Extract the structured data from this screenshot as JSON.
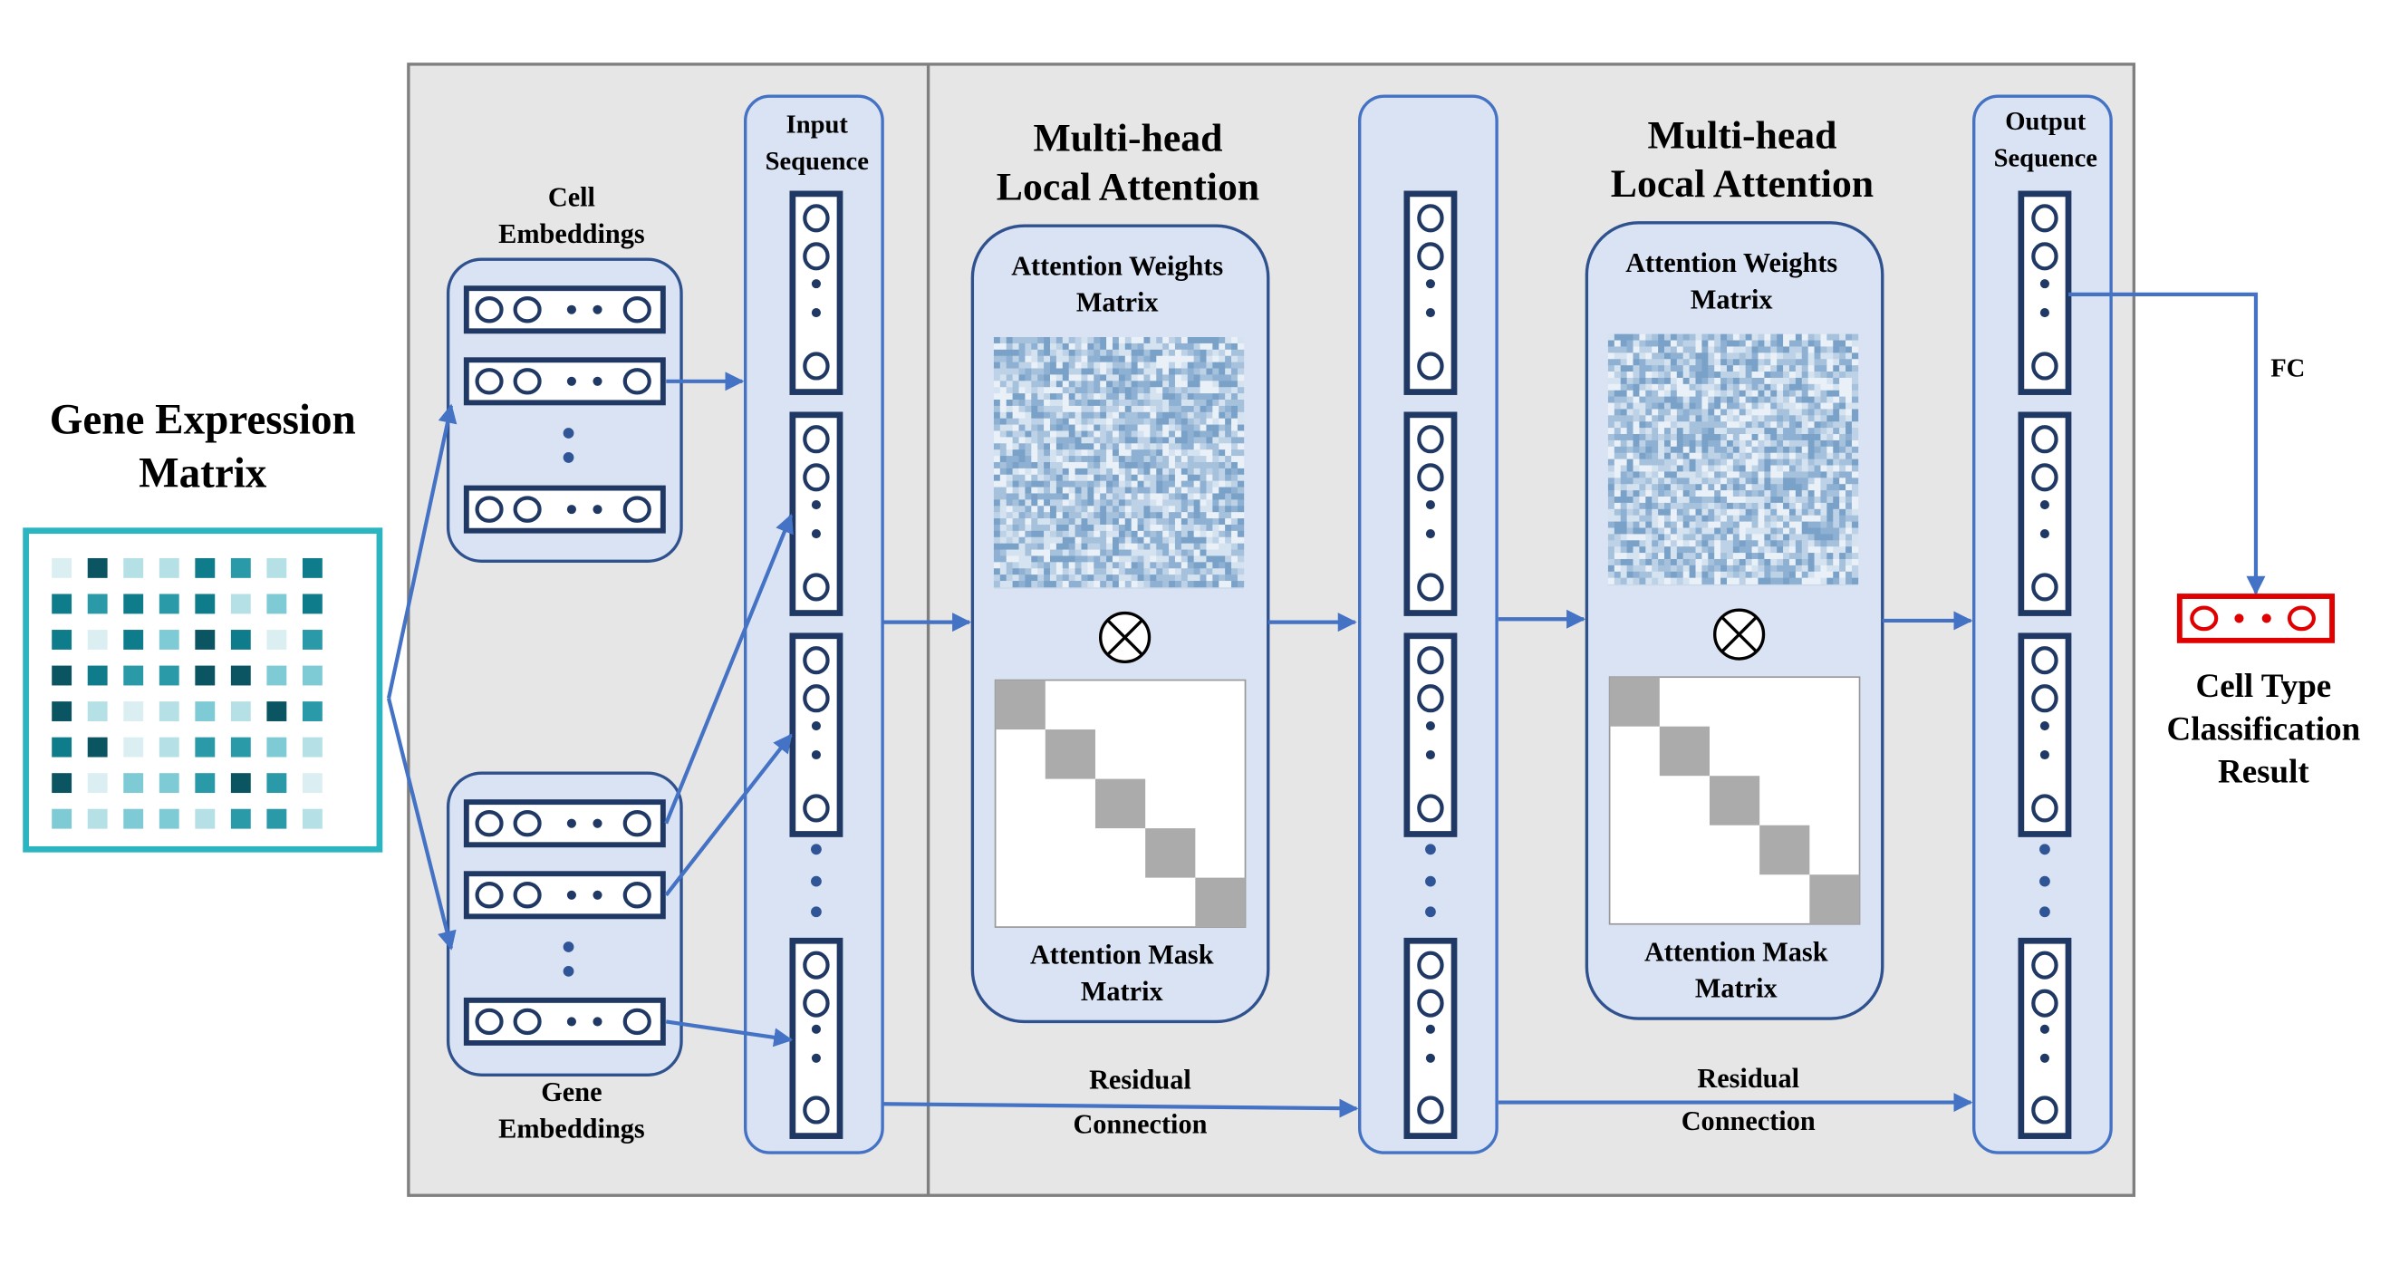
{
  "gene_expression_matrix": {
    "label": [
      "Gene Expression",
      "Matrix"
    ]
  },
  "cell_embeddings": {
    "label": [
      "Cell",
      "Embeddings"
    ]
  },
  "gene_embeddings": {
    "label": [
      "Gene",
      "Embeddings"
    ]
  },
  "input_sequence": {
    "label": [
      "Input",
      "Sequence"
    ]
  },
  "attention_blocks": [
    {
      "title": [
        "Multi-head",
        "Local Attention"
      ],
      "weights": [
        "Attention Weights",
        "Matrix"
      ],
      "mask": [
        "Attention Mask",
        "Matrix"
      ],
      "residual": [
        "Residual",
        "Connection"
      ]
    },
    {
      "title": [
        "Multi-head",
        "Local Attention"
      ],
      "weights": [
        "Attention Weights",
        "Matrix"
      ],
      "mask": [
        "Attention Mask",
        "Matrix"
      ],
      "residual": [
        "Residual",
        "Connection"
      ]
    }
  ],
  "output_sequence": {
    "label": [
      "Output",
      "Sequence"
    ]
  },
  "fc": "FC",
  "result": {
    "label": [
      "Cell Type",
      "Classification",
      "Result"
    ]
  }
}
